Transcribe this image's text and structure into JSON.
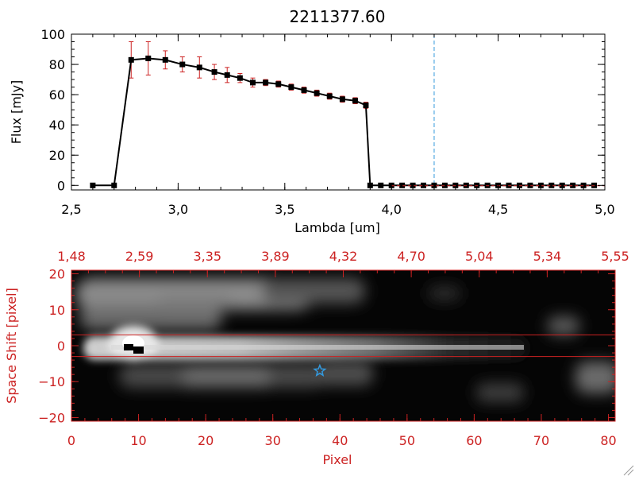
{
  "chart_data": [
    {
      "type": "line",
      "title": "2211377.60",
      "xlabel": "Lambda [um]",
      "ylabel": "Flux [mJy]",
      "xlim": [
        2.5,
        5.0
      ],
      "ylim": [
        -3,
        100
      ],
      "xticks": [
        2.5,
        3.0,
        3.5,
        4.0,
        4.5,
        5.0
      ],
      "xtick_labels": [
        "2,5",
        "3,0",
        "3,5",
        "4,0",
        "4,5",
        "5,0"
      ],
      "yticks": [
        0,
        20,
        40,
        60,
        80,
        100
      ],
      "ytick_labels": [
        "0",
        "20",
        "40",
        "60",
        "80",
        "100"
      ],
      "reference_line_x": 4.2,
      "colors": {
        "line": "#000000",
        "errorbar": "#cc2222",
        "reference_line": "#3399dd"
      },
      "series": [
        {
          "x": [
            2.6,
            2.7,
            2.78,
            2.86,
            2.94,
            3.02,
            3.1,
            3.17,
            3.23,
            3.29,
            3.35,
            3.41,
            3.47,
            3.53,
            3.59,
            3.65,
            3.71,
            3.77,
            3.83,
            3.88,
            3.9,
            3.95,
            4.0,
            4.05,
            4.1,
            4.15,
            4.2,
            4.25,
            4.3,
            4.35,
            4.4,
            4.45,
            4.5,
            4.55,
            4.6,
            4.65,
            4.7,
            4.75,
            4.8,
            4.85,
            4.9,
            4.95
          ],
          "y": [
            0,
            0,
            83,
            84,
            83,
            80,
            78,
            75,
            73,
            71,
            68,
            68,
            67,
            65,
            63,
            61,
            59,
            57,
            56,
            53,
            0,
            0,
            0,
            0,
            0,
            0,
            0,
            0,
            0,
            0,
            0,
            0,
            0,
            0,
            0,
            0,
            0,
            0,
            0,
            0,
            0,
            0
          ],
          "yerr": [
            0,
            0,
            12,
            11,
            6,
            5,
            7,
            5,
            5,
            3,
            3,
            2,
            2,
            2,
            2,
            2,
            2,
            2,
            2,
            2,
            0,
            0,
            0,
            0,
            0,
            0,
            0,
            0,
            0,
            0,
            0,
            0,
            0,
            0,
            0,
            0,
            0,
            0,
            0,
            0,
            0,
            0
          ]
        }
      ]
    },
    {
      "type": "heatmap",
      "xlabel": "Pixel",
      "ylabel": "Space Shift [pixel]",
      "xlim": [
        0,
        81
      ],
      "ylim": [
        -21,
        21
      ],
      "xticks": [
        0,
        10,
        20,
        30,
        40,
        50,
        60,
        70,
        80
      ],
      "xtick_labels": [
        "0",
        "10",
        "20",
        "30",
        "40",
        "50",
        "60",
        "70",
        "80"
      ],
      "yticks": [
        -20,
        -10,
        0,
        10,
        20
      ],
      "ytick_labels": [
        "−20",
        "−10",
        "0",
        "10",
        "20"
      ],
      "top_axis_labels": [
        "1,48",
        "2,59",
        "3,35",
        "3,89",
        "4,32",
        "4,70",
        "5,04",
        "5,34",
        "5,55"
      ],
      "aperture_lines_y": [
        3,
        -3
      ],
      "marker": {
        "shape": "star",
        "x": 37,
        "y": -7,
        "color": "#3399dd"
      },
      "colors": {
        "axis": "#cc2222",
        "aperture": "#cc2222"
      }
    }
  ]
}
